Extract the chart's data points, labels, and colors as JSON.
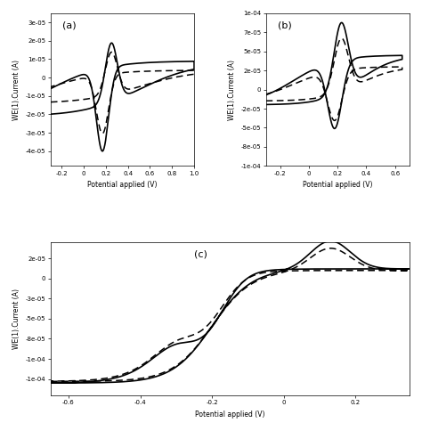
{
  "panel_a": {
    "label": "(a)",
    "xlim": [
      -0.3,
      1.0
    ],
    "ylim": [
      -4.8e-05,
      3.5e-05
    ],
    "xlabel": "Potential applied (V)",
    "ylabel": "WE(1).Current (A)"
  },
  "panel_b": {
    "label": "(b)",
    "xlim": [
      -0.3,
      0.7
    ],
    "ylim": [
      -0.0001,
      0.0001
    ],
    "xlabel": "Potential applied (V)",
    "ylabel": "WE(1).Current (A)"
  },
  "panel_c": {
    "label": "(c)",
    "xlim": [
      -0.65,
      0.35
    ],
    "ylim": [
      -0.000145,
      4.5e-05
    ],
    "xlabel": "Potential applied (V)",
    "ylabel": "WE(1).Current (A)"
  },
  "line_color": "#000000",
  "background_color": "#ffffff"
}
